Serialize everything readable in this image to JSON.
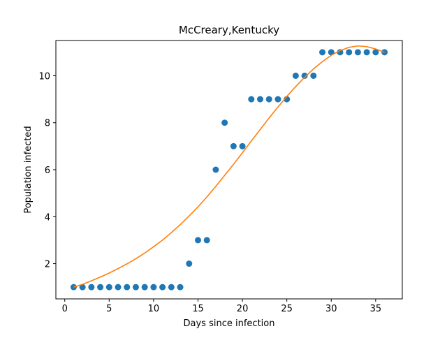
{
  "chart_data": {
    "type": "scatter",
    "title": "McCreary,Kentucky",
    "xlabel": "Days since infection",
    "ylabel": "Population infected",
    "xlim": [
      -1,
      38
    ],
    "ylim": [
      0.5,
      11.5
    ],
    "xticks": [
      0,
      5,
      10,
      15,
      20,
      25,
      30,
      35
    ],
    "yticks": [
      2,
      4,
      6,
      8,
      10
    ],
    "grid": false,
    "series": [
      {
        "kind": "scatter",
        "color": "#1f77b4",
        "x": [
          1,
          2,
          3,
          4,
          5,
          6,
          7,
          8,
          9,
          10,
          11,
          12,
          13,
          14,
          15,
          16,
          17,
          18,
          19,
          20,
          21,
          22,
          23,
          24,
          25,
          26,
          27,
          28,
          29,
          30,
          31,
          32,
          33,
          34,
          35,
          36
        ],
        "y": [
          1,
          1,
          1,
          1,
          1,
          1,
          1,
          1,
          1,
          1,
          1,
          1,
          1,
          2,
          3,
          3,
          6,
          8,
          7,
          7,
          9,
          9,
          9,
          9,
          9,
          10,
          10,
          10,
          11,
          11,
          11,
          11,
          11,
          11,
          11,
          11
        ]
      },
      {
        "kind": "line",
        "color": "#ff7f0e",
        "x": [
          1,
          2,
          3,
          4,
          5,
          6,
          7,
          8,
          9,
          10,
          11,
          12,
          13,
          14,
          15,
          16,
          17,
          18,
          19,
          20,
          21,
          22,
          23,
          24,
          25,
          26,
          27,
          28,
          29,
          30,
          31,
          32,
          33,
          34,
          35,
          36
        ],
        "y": [
          1.0,
          1.12,
          1.27,
          1.43,
          1.6,
          1.79,
          1.99,
          2.21,
          2.45,
          2.72,
          3.0,
          3.32,
          3.66,
          4.03,
          4.42,
          4.84,
          5.29,
          5.76,
          6.23,
          6.72,
          7.22,
          7.71,
          8.2,
          8.67,
          9.12,
          9.54,
          9.93,
          10.29,
          10.6,
          10.87,
          11.07,
          11.21,
          11.27,
          11.24,
          11.14,
          11.0
        ]
      }
    ]
  }
}
